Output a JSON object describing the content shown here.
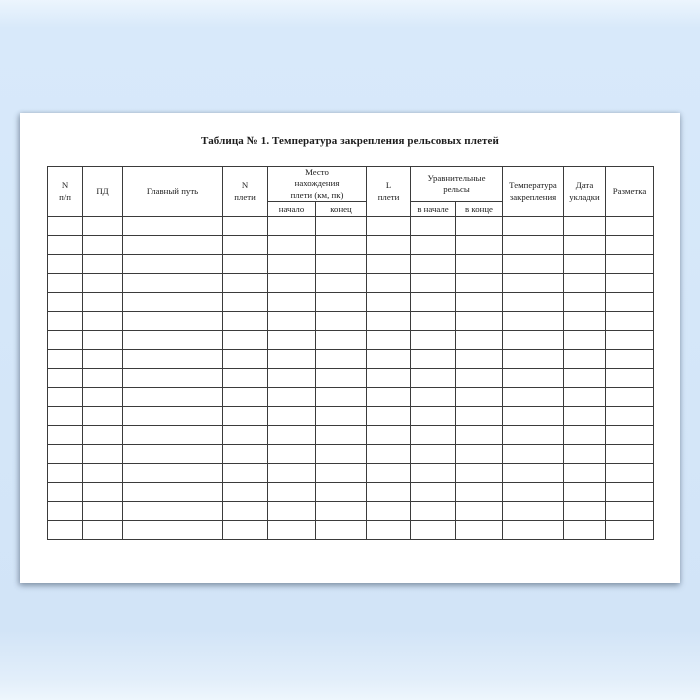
{
  "document": {
    "title": "Таблица № 1. Температура закрепления рельсовых плетей"
  },
  "table": {
    "header": {
      "npp": "N\nп/п",
      "pd": "ПД",
      "main_track": "Главный путь",
      "n_pleti": "N\nплети",
      "location_group": "Место\nнахождения\nплети (км, пк)",
      "location_start": "начало",
      "location_end": "конец",
      "l_pleti": "L\nплети",
      "equalizing_group": "Уравнительные\nрельсы",
      "equalizing_start": "в начале",
      "equalizing_end": "в конце",
      "temperature": "Температура\nзакрепления",
      "laying_date": "Дата\nукладки",
      "marking": "Разметка"
    },
    "body": {
      "row_count": 17,
      "column_count": 12
    }
  },
  "theme": {
    "background_color": "#d5e7f9",
    "page_color": "#ffffff",
    "border_color": "#3b3b3b",
    "text_color": "#1c1c1c"
  }
}
